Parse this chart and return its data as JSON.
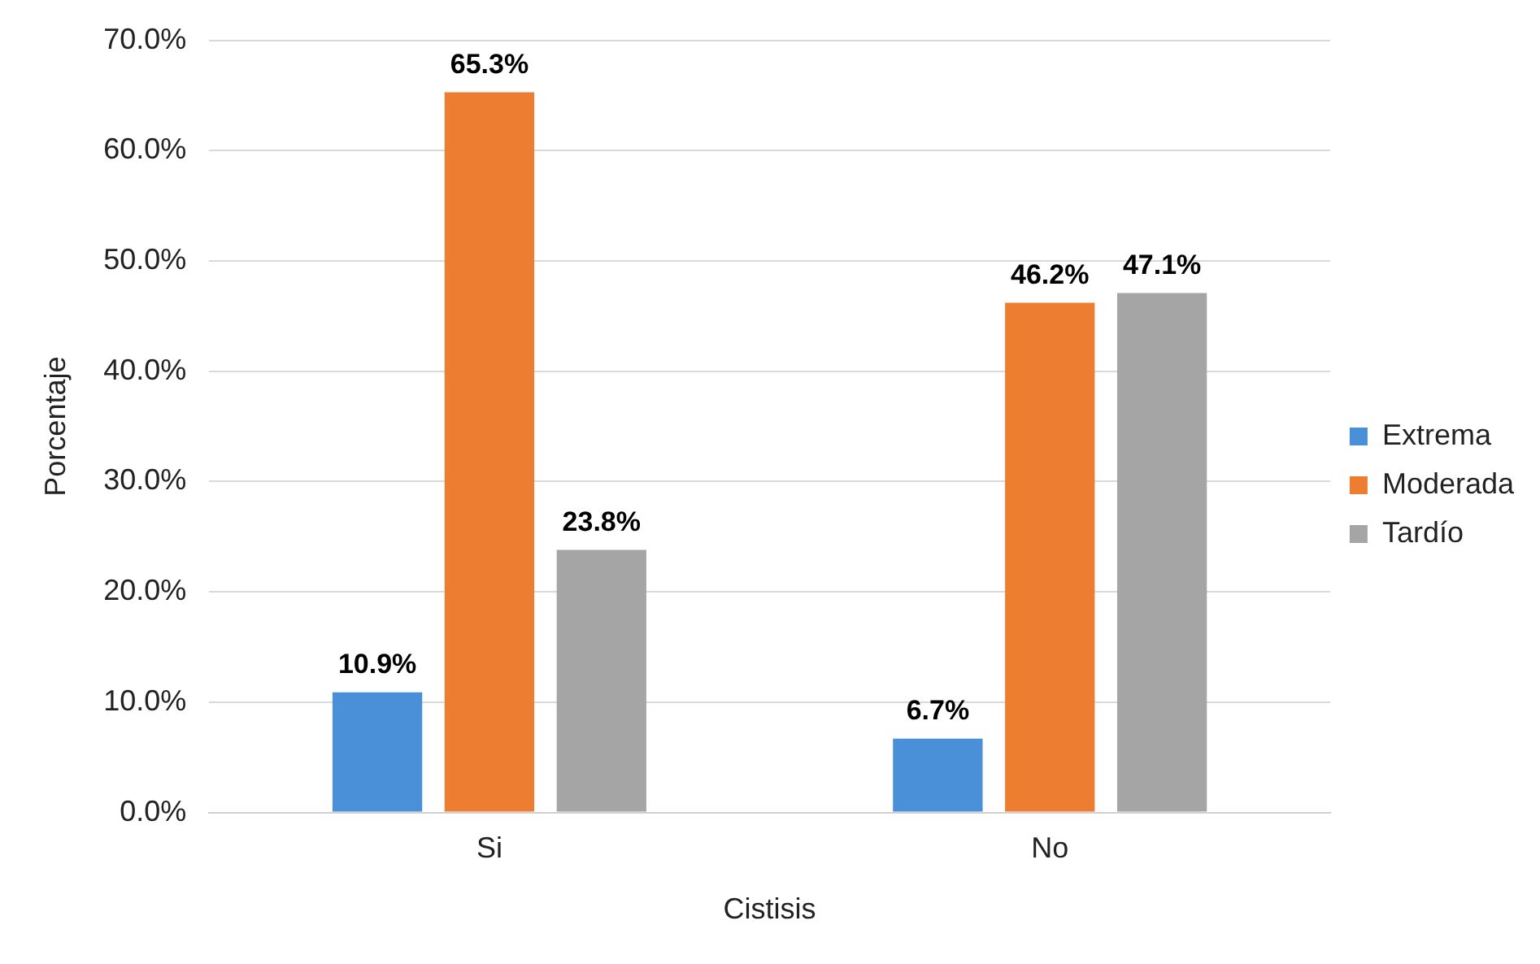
{
  "chart_data": {
    "type": "bar",
    "xlabel": "Cistisis",
    "ylabel": "Porcentaje",
    "categories": [
      "Si",
      "No"
    ],
    "series": [
      {
        "name": "Extrema",
        "color": "#4a90d9",
        "values": [
          10.9,
          6.7
        ],
        "value_labels": [
          "10.9%",
          "6.7%"
        ]
      },
      {
        "name": "Moderada",
        "color": "#ed7d31",
        "values": [
          65.3,
          46.2
        ],
        "value_labels": [
          "65.3%",
          "46.2%"
        ]
      },
      {
        "name": "Tardío",
        "color": "#a5a5a5",
        "values": [
          23.8,
          47.1
        ],
        "value_labels": [
          "23.8%",
          "47.1%"
        ]
      }
    ],
    "ylim": [
      0,
      70
    ],
    "yticks": [
      {
        "value": 0,
        "label": "0.0%"
      },
      {
        "value": 10,
        "label": "10.0%"
      },
      {
        "value": 20,
        "label": "20.0%"
      },
      {
        "value": 30,
        "label": "30.0%"
      },
      {
        "value": 40,
        "label": "40.0%"
      },
      {
        "value": 50,
        "label": "50.0%"
      },
      {
        "value": 60,
        "label": "60.0%"
      },
      {
        "value": 70,
        "label": "70.0%"
      }
    ],
    "grid": "y",
    "legend": "right"
  }
}
